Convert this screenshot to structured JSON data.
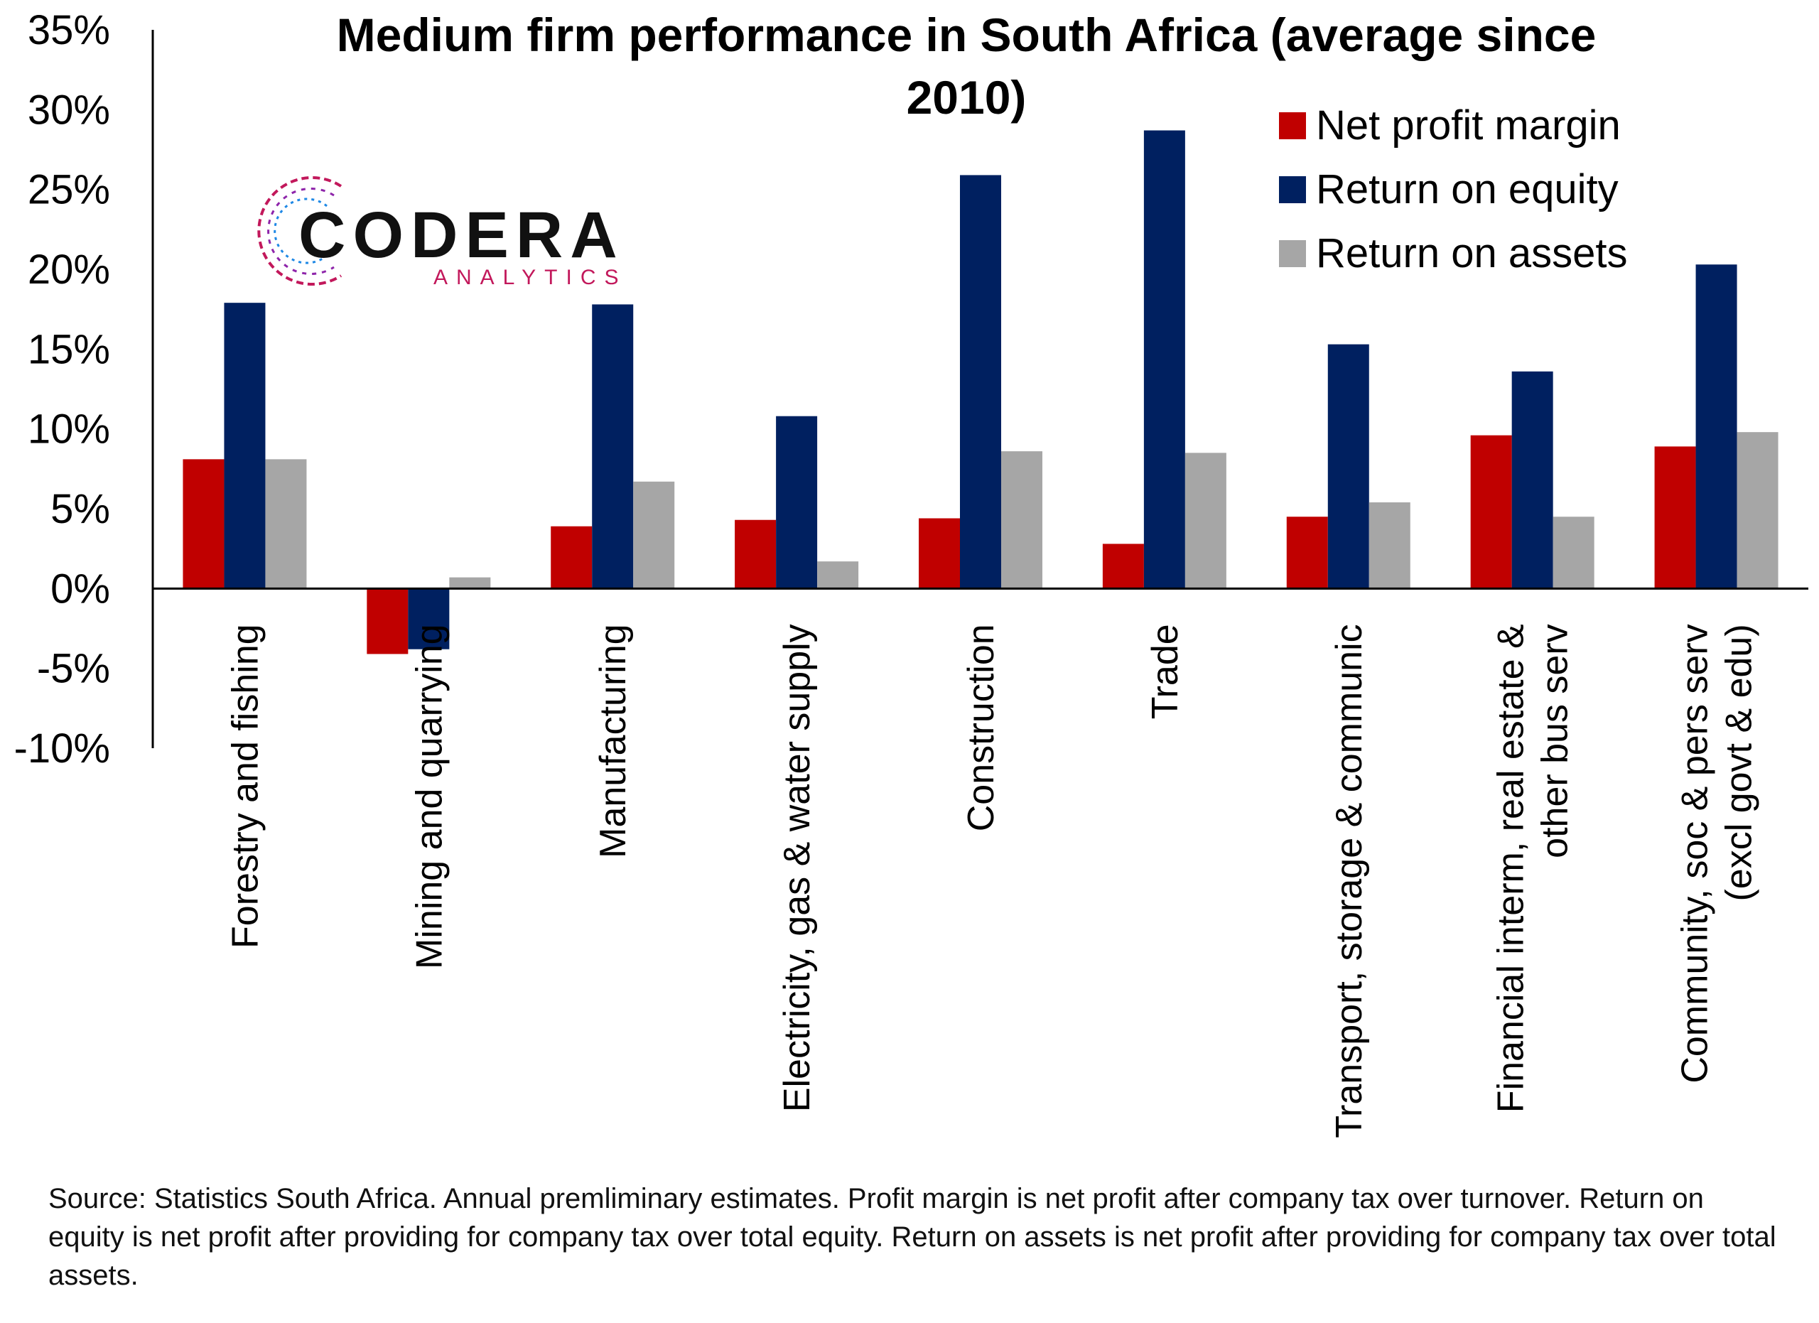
{
  "chart_data": {
    "type": "bar",
    "title": "Medium firm performance in South Africa (average since 2010)",
    "title_lines": [
      "Medium firm performance in South Africa (average since",
      "2010)"
    ],
    "categories": [
      "Forestry and fishing",
      "Mining and quarrying",
      "Manufacturing",
      "Electricity, gas & water supply",
      "Construction",
      "Trade",
      "Transport, storage & communic",
      "Financial interm, real estate & other bus serv",
      "Community, soc & pers serv (excl  govt & edu)"
    ],
    "category_lines": [
      [
        "Forestry and fishing"
      ],
      [
        "Mining and quarrying"
      ],
      [
        "Manufacturing"
      ],
      [
        "Electricity, gas & water supply"
      ],
      [
        "Construction"
      ],
      [
        "Trade"
      ],
      [
        "Transport, storage & communic"
      ],
      [
        "Financial interm, real estate &",
        "other bus serv"
      ],
      [
        "Community, soc & pers serv",
        "(excl  govt & edu)"
      ]
    ],
    "series": [
      {
        "name": "Net profit margin",
        "color": "#c00000",
        "values": [
          8.1,
          -4.1,
          3.9,
          4.3,
          4.4,
          2.8,
          4.5,
          9.6,
          8.9
        ]
      },
      {
        "name": "Return on equity",
        "color": "#002060",
        "values": [
          17.9,
          -3.8,
          17.8,
          10.8,
          25.9,
          28.7,
          15.3,
          13.6,
          20.3
        ]
      },
      {
        "name": "Return on assets",
        "color": "#a6a6a6",
        "values": [
          8.1,
          0.7,
          6.7,
          1.7,
          8.6,
          8.5,
          5.4,
          4.5,
          9.8
        ]
      }
    ],
    "ylim": [
      -10,
      35
    ],
    "yticks": [
      35,
      30,
      25,
      20,
      15,
      10,
      5,
      0,
      -5,
      -10
    ],
    "ytick_labels": [
      "35%",
      "30%",
      "25%",
      "20%",
      "15%",
      "10%",
      "5%",
      "0%",
      "-5%",
      "-10%"
    ],
    "xlabel": "",
    "ylabel": "",
    "grid": false,
    "legend_position": "top-right"
  },
  "logo": {
    "name": "CODERA",
    "sub": "ANALYTICS"
  },
  "source_note": "Source: Statistics South Africa. Annual premliminary estimates. Profit margin is net profit after company tax over turnover. Return on equity is net profit after providing for company tax over total equity. Return on assets is net profit after providing for company tax over total assets."
}
